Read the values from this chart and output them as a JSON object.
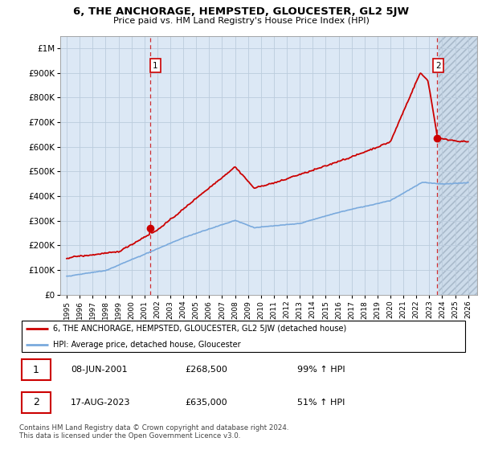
{
  "title": "6, THE ANCHORAGE, HEMPSTED, GLOUCESTER, GL2 5JW",
  "subtitle": "Price paid vs. HM Land Registry's House Price Index (HPI)",
  "ylabel_ticks": [
    "£0",
    "£100K",
    "£200K",
    "£300K",
    "£400K",
    "£500K",
    "£600K",
    "£700K",
    "£800K",
    "£900K",
    "£1M"
  ],
  "ytick_values": [
    0,
    100000,
    200000,
    300000,
    400000,
    500000,
    600000,
    700000,
    800000,
    900000,
    1000000
  ],
  "ylim": [
    0,
    1050000
  ],
  "xlim_start": 1994.5,
  "xlim_end": 2026.7,
  "property_color": "#cc0000",
  "hpi_color": "#7aaadd",
  "transaction1_date": "08-JUN-2001",
  "transaction1_price": 268500,
  "transaction1_year": 2001.44,
  "transaction1_label": "1",
  "transaction1_pct": "99%",
  "transaction2_date": "17-AUG-2023",
  "transaction2_price": 635000,
  "transaction2_year": 2023.62,
  "transaction2_label": "2",
  "transaction2_pct": "51%",
  "legend_property": "6, THE ANCHORAGE, HEMPSTED, GLOUCESTER, GL2 5JW (detached house)",
  "legend_hpi": "HPI: Average price, detached house, Gloucester",
  "footer": "Contains HM Land Registry data © Crown copyright and database right 2024.\nThis data is licensed under the Open Government Licence v3.0.",
  "background_color": "#ffffff",
  "chart_bg_color": "#dce8f5",
  "grid_color": "#bbccdd",
  "hatch_color": "#c8d8e8",
  "xtick_years": [
    1995,
    1996,
    1997,
    1998,
    1999,
    2000,
    2001,
    2002,
    2003,
    2004,
    2005,
    2006,
    2007,
    2008,
    2009,
    2010,
    2011,
    2012,
    2013,
    2014,
    2015,
    2016,
    2017,
    2018,
    2019,
    2020,
    2021,
    2022,
    2023,
    2024,
    2025,
    2026
  ]
}
